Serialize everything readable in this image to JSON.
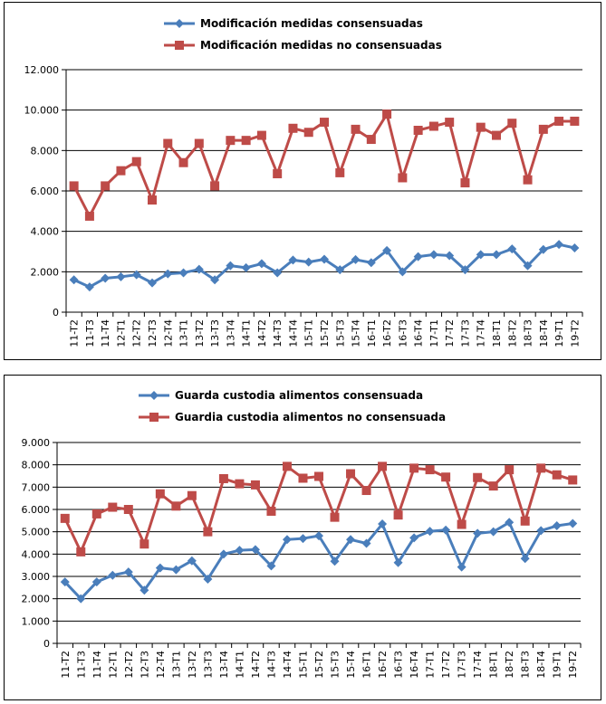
{
  "colors": {
    "consensuadas": "#4a7ebb",
    "no_consensuadas": "#be4b48"
  },
  "chart_data": [
    {
      "type": "line",
      "title": "",
      "legend_position": "top",
      "categories": [
        "11-T2",
        "11-T3",
        "11-T4",
        "12-T1",
        "12-T2",
        "12-T3",
        "12-T4",
        "13-T1",
        "13-T2",
        "13-T3",
        "13-T4",
        "14-T1",
        "14-T2",
        "14-T3",
        "14-T4",
        "15-T1",
        "15-T2",
        "15-T3",
        "15-T4",
        "16-T1",
        "16-T2",
        "16-T3",
        "16-T4",
        "17-T1",
        "17-T2",
        "17-T3",
        "17-T4",
        "18-T1",
        "18-T2",
        "18-T3",
        "18-T4",
        "19-T1",
        "19-T2"
      ],
      "yticks": [
        "0",
        "2.000",
        "4.000",
        "6.000",
        "8.000",
        "10.000",
        "12.000"
      ],
      "ylim": [
        0,
        12000
      ],
      "series": [
        {
          "name": "Modificación medidas consensuadas",
          "color": "#4a7ebb",
          "marker": "diamond",
          "values": [
            1600,
            1250,
            1680,
            1750,
            1850,
            1450,
            1900,
            1950,
            2120,
            1600,
            2300,
            2200,
            2400,
            1950,
            2580,
            2480,
            2620,
            2100,
            2600,
            2450,
            3050,
            2000,
            2750,
            2850,
            2800,
            2100,
            2850,
            2850,
            3130,
            2300,
            3100,
            3350,
            3180
          ]
        },
        {
          "name": "Modificación medidas no consensuadas",
          "color": "#be4b48",
          "marker": "square",
          "values": [
            6250,
            4750,
            6250,
            7000,
            7450,
            5550,
            8350,
            7400,
            8350,
            6250,
            8500,
            8500,
            8750,
            6850,
            9100,
            8900,
            9400,
            6900,
            9050,
            8550,
            9800,
            6650,
            9000,
            9200,
            9400,
            6400,
            9150,
            8750,
            9350,
            6550,
            9050,
            9450,
            9450
          ]
        }
      ]
    },
    {
      "type": "line",
      "title": "",
      "legend_position": "top",
      "categories": [
        "11-T2",
        "11-T3",
        "11-T4",
        "12-T1",
        "12-T2",
        "12-T3",
        "12-T4",
        "13-T1",
        "13-T2",
        "13-T3",
        "13-T4",
        "14-T1",
        "14-T2",
        "14-T3",
        "14-T4",
        "15-T1",
        "15-T2",
        "15-T3",
        "15-T4",
        "16-T1",
        "16-T2",
        "16-T3",
        "16-T4",
        "17-T1",
        "17-T2",
        "17-T3",
        "17-T4",
        "18-T1",
        "18-T2",
        "18-T3",
        "18-T4",
        "19-T1",
        "19-T2"
      ],
      "yticks": [
        "0",
        "1.000",
        "2.000",
        "3.000",
        "4.000",
        "5.000",
        "6.000",
        "7.000",
        "8.000",
        "9.000"
      ],
      "ylim": [
        0,
        9000
      ],
      "series": [
        {
          "name": "Guarda custodia alimentos consensuada",
          "color": "#4a7ebb",
          "marker": "diamond",
          "values": [
            2750,
            2000,
            2750,
            3050,
            3200,
            2380,
            3380,
            3300,
            3700,
            2880,
            4000,
            4170,
            4200,
            3470,
            4650,
            4700,
            4820,
            3680,
            4650,
            4480,
            5350,
            3620,
            4730,
            5020,
            5080,
            3420,
            4930,
            5000,
            5420,
            3800,
            5050,
            5270,
            5370
          ]
        },
        {
          "name": "Guardia custodia alimentos no consensuada",
          "color": "#be4b48",
          "marker": "square",
          "values": [
            5600,
            4100,
            5800,
            6100,
            6000,
            4450,
            6700,
            6150,
            6620,
            5000,
            7380,
            7150,
            7100,
            5920,
            7930,
            7400,
            7480,
            5650,
            7600,
            6850,
            7930,
            5750,
            7850,
            7780,
            7450,
            5330,
            7430,
            7050,
            7780,
            5480,
            7850,
            7550,
            7320
          ]
        }
      ]
    }
  ]
}
